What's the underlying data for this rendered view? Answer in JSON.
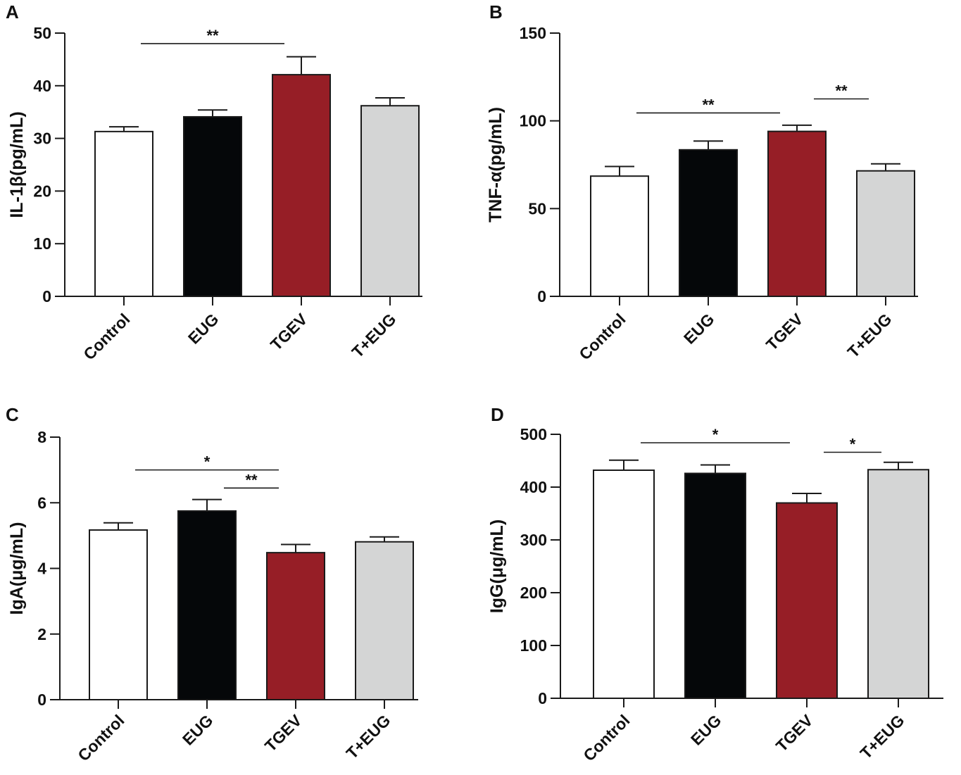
{
  "colors": {
    "Control": "#ffffff",
    "EUG": "#050709",
    "TGEV": "#961e26",
    "T+EUG": "#d4d5d5",
    "stroke": "#1a1a1a"
  },
  "chart_data": [
    {
      "type": "bar",
      "panel": "A",
      "categories": [
        "Control",
        "EUG",
        "TGEV",
        "T+EUG"
      ],
      "values": [
        31.3,
        34.1,
        42.1,
        36.2
      ],
      "errors": [
        0.9,
        1.3,
        3.4,
        1.5
      ],
      "ylabel": "IL-1β(pg/mL)",
      "ylim": [
        0,
        50
      ],
      "yticks": [
        0,
        10,
        20,
        30,
        40,
        50
      ],
      "tick_labels": [
        "0",
        "10",
        "20",
        "30",
        "40",
        "50"
      ],
      "significance": [
        {
          "from": 0,
          "to": 2,
          "level": 48.0,
          "label": "**"
        }
      ]
    },
    {
      "type": "bar",
      "panel": "B",
      "categories": [
        "Control",
        "EUG",
        "TGEV",
        "T+EUG"
      ],
      "values": [
        68.5,
        83.5,
        94.0,
        71.5
      ],
      "errors": [
        5.5,
        5.0,
        3.5,
        4.0
      ],
      "ylabel": "TNF-α(pg/mL)",
      "ylim": [
        0,
        150
      ],
      "yticks": [
        0,
        50,
        100,
        150
      ],
      "tick_labels": [
        "0",
        "50",
        "100",
        "150"
      ],
      "significance": [
        {
          "from": 0,
          "to": 2,
          "level": 104.5,
          "label": "**"
        },
        {
          "from": 2,
          "to": 3,
          "level": 112.5,
          "label": "**"
        }
      ]
    },
    {
      "type": "bar",
      "panel": "C",
      "categories": [
        "Control",
        "EUG",
        "TGEV",
        "T+EUG"
      ],
      "values": [
        5.17,
        5.75,
        4.48,
        4.81
      ],
      "errors": [
        0.22,
        0.35,
        0.25,
        0.15
      ],
      "ylabel": "IgA(μg/mL)",
      "ylim": [
        0,
        8
      ],
      "yticks": [
        0,
        2,
        4,
        6,
        8
      ],
      "tick_labels": [
        "0",
        "2",
        "4",
        "6",
        "8"
      ],
      "significance": [
        {
          "from": 0,
          "to": 2,
          "level": 7.0,
          "label": "*"
        },
        {
          "from": 1,
          "to": 2,
          "level": 6.45,
          "label": "**"
        }
      ]
    },
    {
      "type": "bar",
      "panel": "D",
      "categories": [
        "Control",
        "EUG",
        "TGEV",
        "T+EUG"
      ],
      "values": [
        432,
        426,
        370,
        433
      ],
      "errors": [
        19,
        16,
        18,
        14
      ],
      "ylabel": "IgG(μg/mL)",
      "ylim": [
        0,
        500
      ],
      "yticks": [
        0,
        100,
        200,
        300,
        400,
        500
      ],
      "tick_labels": [
        "0",
        "100",
        "200",
        "300",
        "400",
        "500"
      ],
      "significance": [
        {
          "from": 0,
          "to": 2,
          "level": 484,
          "label": "*"
        },
        {
          "from": 2,
          "to": 3,
          "level": 466,
          "label": "*"
        }
      ]
    }
  ]
}
